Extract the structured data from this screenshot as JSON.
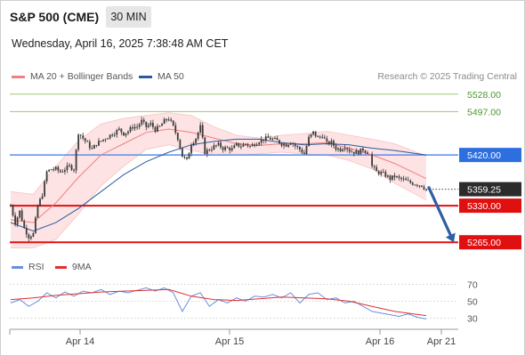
{
  "header": {
    "title": "S&P 500 (CME)",
    "timeframe": "30 MIN",
    "datetime": "Wednesday, April 16, 2025 7:38:48 AM CET",
    "credit": "Research © 2025 Trading Central"
  },
  "legend": {
    "ma20": "MA 20 + Bollinger Bands",
    "ma50": "MA 50",
    "rsi": "RSI",
    "rsi_ma": "9MA"
  },
  "colors": {
    "ma20": "#f08080",
    "ma50": "#2e5aa0",
    "bollinger_fill": "#fde3e3",
    "resistance_green": "#9acd68",
    "pivot_blue": "#5b8def",
    "support_red": "#e01010",
    "candle": "#3b3b3b",
    "price_tag": "#2b2b2b",
    "arrow": "#2f5ea5",
    "rsi": "#6a8fdc",
    "rsi_ma": "#e03030"
  },
  "chart_data": [
    {
      "type": "candlestick",
      "title": "S&P 500 (CME)",
      "timeframe": "30 MIN",
      "x_tick_labels": [
        "Apr 14",
        "Apr 15",
        "Apr 16",
        "Apr 21"
      ],
      "ylim": [
        5248,
        5545
      ],
      "current_price": 5359.25,
      "levels": [
        {
          "label": "5528.00",
          "value": 5528,
          "kind": "resistance",
          "color": "#9acd68"
        },
        {
          "label": "5497.00",
          "value": 5497,
          "kind": "resistance",
          "color": "#9acd68"
        },
        {
          "label": "5420.00",
          "value": 5420,
          "kind": "pivot",
          "color": "#5b8def"
        },
        {
          "label": "5330.00",
          "value": 5330,
          "kind": "support",
          "color": "#e01010"
        },
        {
          "label": "5265.00",
          "value": 5265,
          "kind": "support",
          "color": "#e01010"
        }
      ],
      "current_price_label": "5359.25",
      "forecast_arrow": {
        "from": 5362,
        "to": 5265,
        "direction": "down"
      },
      "close_path": [
        [
          0,
          5330
        ],
        [
          2,
          5300
        ],
        [
          4,
          5320
        ],
        [
          6,
          5290
        ],
        [
          8,
          5275
        ],
        [
          10,
          5280
        ],
        [
          12,
          5330
        ],
        [
          14,
          5350
        ],
        [
          16,
          5390
        ],
        [
          18,
          5395
        ],
        [
          20,
          5395
        ],
        [
          22,
          5390
        ],
        [
          24,
          5395
        ],
        [
          26,
          5400
        ],
        [
          28,
          5395
        ],
        [
          30,
          5460
        ],
        [
          32,
          5450
        ],
        [
          34,
          5440
        ],
        [
          36,
          5430
        ],
        [
          38,
          5440
        ],
        [
          40,
          5445
        ],
        [
          42,
          5450
        ],
        [
          44,
          5455
        ],
        [
          46,
          5460
        ],
        [
          48,
          5465
        ],
        [
          50,
          5458
        ],
        [
          52,
          5462
        ],
        [
          54,
          5470
        ],
        [
          56,
          5470
        ],
        [
          58,
          5480
        ],
        [
          60,
          5470
        ],
        [
          62,
          5475
        ],
        [
          64,
          5465
        ],
        [
          66,
          5470
        ],
        [
          68,
          5480
        ],
        [
          70,
          5485
        ],
        [
          72,
          5470
        ],
        [
          74,
          5450
        ],
        [
          76,
          5418
        ],
        [
          78,
          5410
        ],
        [
          80,
          5440
        ],
        [
          82,
          5450
        ],
        [
          84,
          5470
        ],
        [
          86,
          5425
        ],
        [
          88,
          5430
        ],
        [
          90,
          5435
        ],
        [
          92,
          5438
        ],
        [
          94,
          5432
        ],
        [
          96,
          5432
        ],
        [
          98,
          5430
        ],
        [
          100,
          5438
        ],
        [
          102,
          5436
        ],
        [
          104,
          5440
        ],
        [
          106,
          5435
        ],
        [
          108,
          5440
        ],
        [
          110,
          5445
        ],
        [
          112,
          5448
        ],
        [
          114,
          5450
        ],
        [
          116,
          5448
        ],
        [
          118,
          5445
        ],
        [
          120,
          5440
        ],
        [
          122,
          5438
        ],
        [
          124,
          5444
        ],
        [
          126,
          5436
        ],
        [
          128,
          5430
        ],
        [
          130,
          5422
        ],
        [
          132,
          5450
        ],
        [
          134,
          5460
        ],
        [
          136,
          5450
        ],
        [
          138,
          5455
        ],
        [
          140,
          5440
        ],
        [
          142,
          5442
        ],
        [
          144,
          5432
        ],
        [
          146,
          5430
        ],
        [
          148,
          5436
        ],
        [
          150,
          5428
        ],
        [
          152,
          5425
        ],
        [
          154,
          5425
        ],
        [
          156,
          5430
        ],
        [
          158,
          5425
        ],
        [
          160,
          5400
        ],
        [
          162,
          5390
        ],
        [
          164,
          5388
        ],
        [
          166,
          5384
        ],
        [
          168,
          5378
        ],
        [
          170,
          5382
        ],
        [
          172,
          5378
        ],
        [
          174,
          5376
        ],
        [
          176,
          5372
        ],
        [
          178,
          5370
        ],
        [
          180,
          5368
        ],
        [
          182,
          5366
        ],
        [
          184,
          5359
        ]
      ],
      "ma20_path": [
        [
          0,
          5305
        ],
        [
          10,
          5300
        ],
        [
          20,
          5335
        ],
        [
          30,
          5380
        ],
        [
          40,
          5420
        ],
        [
          50,
          5440
        ],
        [
          60,
          5460
        ],
        [
          70,
          5466
        ],
        [
          80,
          5460
        ],
        [
          90,
          5450
        ],
        [
          100,
          5440
        ],
        [
          110,
          5437
        ],
        [
          120,
          5440
        ],
        [
          130,
          5440
        ],
        [
          140,
          5442
        ],
        [
          150,
          5432
        ],
        [
          160,
          5420
        ],
        [
          170,
          5405
        ],
        [
          184,
          5378
        ]
      ],
      "ma50_path": [
        [
          0,
          5300
        ],
        [
          10,
          5285
        ],
        [
          20,
          5300
        ],
        [
          30,
          5325
        ],
        [
          40,
          5355
        ],
        [
          50,
          5385
        ],
        [
          60,
          5408
        ],
        [
          70,
          5425
        ],
        [
          80,
          5438
        ],
        [
          90,
          5444
        ],
        [
          100,
          5448
        ],
        [
          110,
          5448
        ],
        [
          120,
          5442
        ],
        [
          130,
          5438
        ],
        [
          140,
          5440
        ],
        [
          150,
          5438
        ],
        [
          160,
          5432
        ],
        [
          170,
          5428
        ],
        [
          184,
          5420
        ]
      ],
      "bollinger_upper": [
        [
          0,
          5355
        ],
        [
          10,
          5350
        ],
        [
          20,
          5400
        ],
        [
          30,
          5445
        ],
        [
          40,
          5475
        ],
        [
          50,
          5485
        ],
        [
          60,
          5490
        ],
        [
          70,
          5495
        ],
        [
          80,
          5490
        ],
        [
          90,
          5470
        ],
        [
          100,
          5455
        ],
        [
          110,
          5450
        ],
        [
          120,
          5455
        ],
        [
          130,
          5458
        ],
        [
          140,
          5462
        ],
        [
          150,
          5455
        ],
        [
          160,
          5448
        ],
        [
          170,
          5440
        ],
        [
          184,
          5418
        ]
      ],
      "bollinger_lower": [
        [
          0,
          5255
        ],
        [
          10,
          5255
        ],
        [
          20,
          5270
        ],
        [
          30,
          5315
        ],
        [
          40,
          5365
        ],
        [
          50,
          5400
        ],
        [
          60,
          5430
        ],
        [
          70,
          5438
        ],
        [
          80,
          5428
        ],
        [
          90,
          5420
        ],
        [
          100,
          5420
        ],
        [
          110,
          5422
        ],
        [
          120,
          5425
        ],
        [
          130,
          5422
        ],
        [
          140,
          5420
        ],
        [
          150,
          5410
        ],
        [
          160,
          5395
        ],
        [
          170,
          5370
        ],
        [
          184,
          5340
        ]
      ]
    },
    {
      "type": "line",
      "title": "RSI",
      "series_names": [
        "RSI",
        "9MA"
      ],
      "ylim": [
        22,
        78
      ],
      "y_ticks": [
        70,
        50,
        30
      ],
      "y_tick_labels": [
        "70",
        "50",
        "30"
      ],
      "rsi": [
        [
          0,
          48
        ],
        [
          4,
          52
        ],
        [
          8,
          44
        ],
        [
          12,
          50
        ],
        [
          16,
          60
        ],
        [
          20,
          54
        ],
        [
          24,
          61
        ],
        [
          28,
          56
        ],
        [
          32,
          62
        ],
        [
          36,
          60
        ],
        [
          40,
          64
        ],
        [
          44,
          58
        ],
        [
          48,
          62
        ],
        [
          52,
          60
        ],
        [
          56,
          63
        ],
        [
          60,
          66
        ],
        [
          64,
          62
        ],
        [
          68,
          66
        ],
        [
          72,
          60
        ],
        [
          76,
          38
        ],
        [
          80,
          56
        ],
        [
          84,
          60
        ],
        [
          88,
          44
        ],
        [
          92,
          52
        ],
        [
          96,
          48
        ],
        [
          100,
          54
        ],
        [
          104,
          50
        ],
        [
          108,
          56
        ],
        [
          112,
          55
        ],
        [
          116,
          58
        ],
        [
          120,
          54
        ],
        [
          124,
          60
        ],
        [
          128,
          48
        ],
        [
          132,
          58
        ],
        [
          136,
          60
        ],
        [
          140,
          52
        ],
        [
          144,
          54
        ],
        [
          148,
          48
        ],
        [
          152,
          50
        ],
        [
          156,
          44
        ],
        [
          160,
          38
        ],
        [
          164,
          36
        ],
        [
          168,
          34
        ],
        [
          172,
          32
        ],
        [
          176,
          35
        ],
        [
          180,
          31
        ],
        [
          184,
          29
        ]
      ],
      "rsi_ma": [
        [
          0,
          52
        ],
        [
          10,
          54
        ],
        [
          20,
          57
        ],
        [
          30,
          59
        ],
        [
          40,
          61
        ],
        [
          50,
          62
        ],
        [
          60,
          63
        ],
        [
          70,
          64
        ],
        [
          75,
          60
        ],
        [
          80,
          56
        ],
        [
          90,
          52
        ],
        [
          100,
          51
        ],
        [
          110,
          53
        ],
        [
          120,
          55
        ],
        [
          130,
          54
        ],
        [
          140,
          53
        ],
        [
          150,
          50
        ],
        [
          160,
          44
        ],
        [
          170,
          38
        ],
        [
          184,
          33
        ]
      ]
    }
  ]
}
